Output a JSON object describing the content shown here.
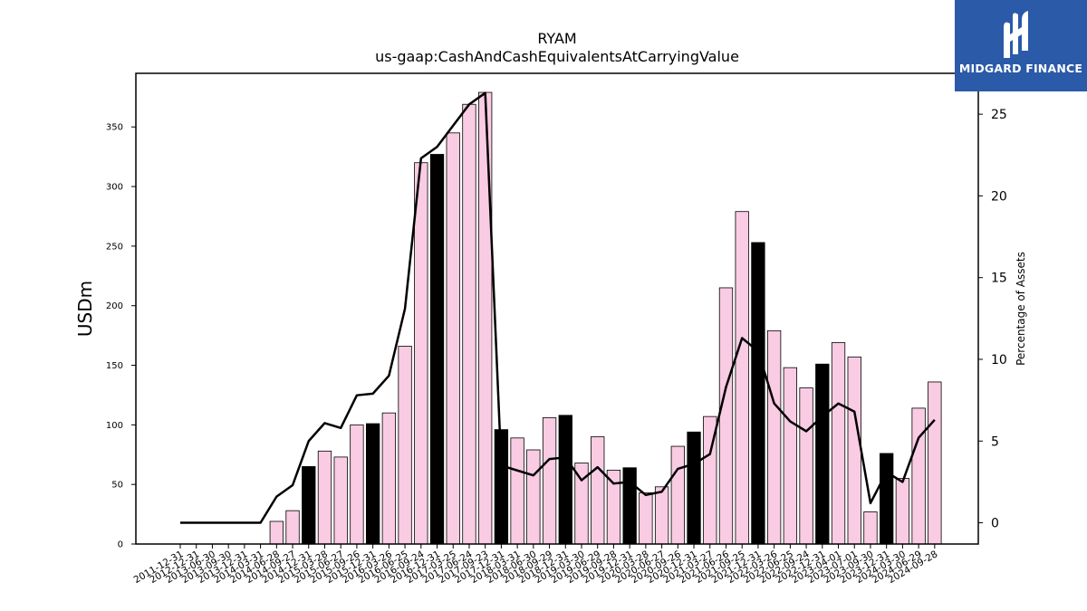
{
  "brand": {
    "logo_text": "MIDGARD FINANCE",
    "logo_bg": "#2a5aa8"
  },
  "chart_data": {
    "type": "bar",
    "title": "RYAM",
    "subtitle": "us-gaap:CashAndCashEquivalentsAtCarryingValue",
    "ylabel": "USDm",
    "y2label": "Percentage of Assets",
    "ylim": [
      0,
      395
    ],
    "y2lim": [
      -1.3,
      27.5
    ],
    "yticks": [
      0,
      50,
      100,
      150,
      200,
      250,
      300,
      350
    ],
    "y2ticks": [
      0,
      5,
      10,
      15,
      20,
      25
    ],
    "bar_color": "#f9cce3",
    "highlight_color": "#000000",
    "line_color": "#000000",
    "categories": [
      "2011-12-31",
      "2012-12-31",
      "2013-06-30",
      "2013-09-30",
      "2013-12-31",
      "2014-03-31",
      "2014-06-28",
      "2014-09-27",
      "2014-12-31",
      "2015-03-28",
      "2015-06-27",
      "2015-09-26",
      "2015-12-31",
      "2016-03-26",
      "2016-06-25",
      "2016-09-24",
      "2016-12-31",
      "2017-03-25",
      "2017-06-24",
      "2017-09-23",
      "2017-12-31",
      "2018-03-31",
      "2018-06-30",
      "2018-09-29",
      "2018-12-31",
      "2019-03-30",
      "2019-06-29",
      "2019-09-28",
      "2019-12-31",
      "2020-03-28",
      "2020-06-27",
      "2020-09-26",
      "2020-12-31",
      "2021-03-27",
      "2021-06-26",
      "2021-09-25",
      "2021-12-31",
      "2022-03-26",
      "2022-06-25",
      "2022-09-24",
      "2022-12-31",
      "2023-04-01",
      "2023-07-01",
      "2023-09-30",
      "2023-12-31",
      "2024-03-30",
      "2024-06-29",
      "2024-09-28"
    ],
    "series": [
      {
        "kind": "bar",
        "values": [
          null,
          null,
          null,
          null,
          null,
          null,
          19,
          28,
          65,
          78,
          73,
          100,
          101,
          110,
          166,
          320,
          327,
          345,
          369,
          379,
          96,
          89,
          79,
          106,
          108,
          68,
          90,
          62,
          64,
          43,
          48,
          82,
          94,
          107,
          215,
          279,
          253,
          179,
          148,
          131,
          151,
          169,
          157,
          27,
          76,
          55,
          114,
          136
        ],
        "highlight": [
          false,
          false,
          false,
          false,
          false,
          false,
          false,
          false,
          true,
          false,
          false,
          false,
          true,
          false,
          false,
          false,
          true,
          false,
          false,
          false,
          true,
          false,
          false,
          false,
          true,
          false,
          false,
          false,
          true,
          false,
          false,
          false,
          true,
          false,
          false,
          false,
          true,
          false,
          false,
          false,
          true,
          false,
          false,
          false,
          true,
          false,
          false,
          false
        ]
      },
      {
        "kind": "line",
        "axis": "right",
        "values": [
          0,
          0,
          0,
          0,
          0,
          0,
          1.6,
          2.3,
          5.0,
          6.1,
          5.8,
          7.8,
          7.9,
          9.0,
          13.1,
          22.3,
          23.0,
          24.3,
          25.6,
          26.3,
          3.5,
          3.2,
          2.9,
          3.9,
          4.0,
          2.6,
          3.4,
          2.4,
          2.5,
          1.7,
          1.9,
          3.3,
          3.6,
          4.2,
          8.3,
          11.3,
          10.5,
          7.3,
          6.2,
          5.6,
          6.5,
          7.3,
          6.8,
          1.2,
          3.1,
          2.5,
          5.2,
          6.3
        ]
      }
    ]
  }
}
